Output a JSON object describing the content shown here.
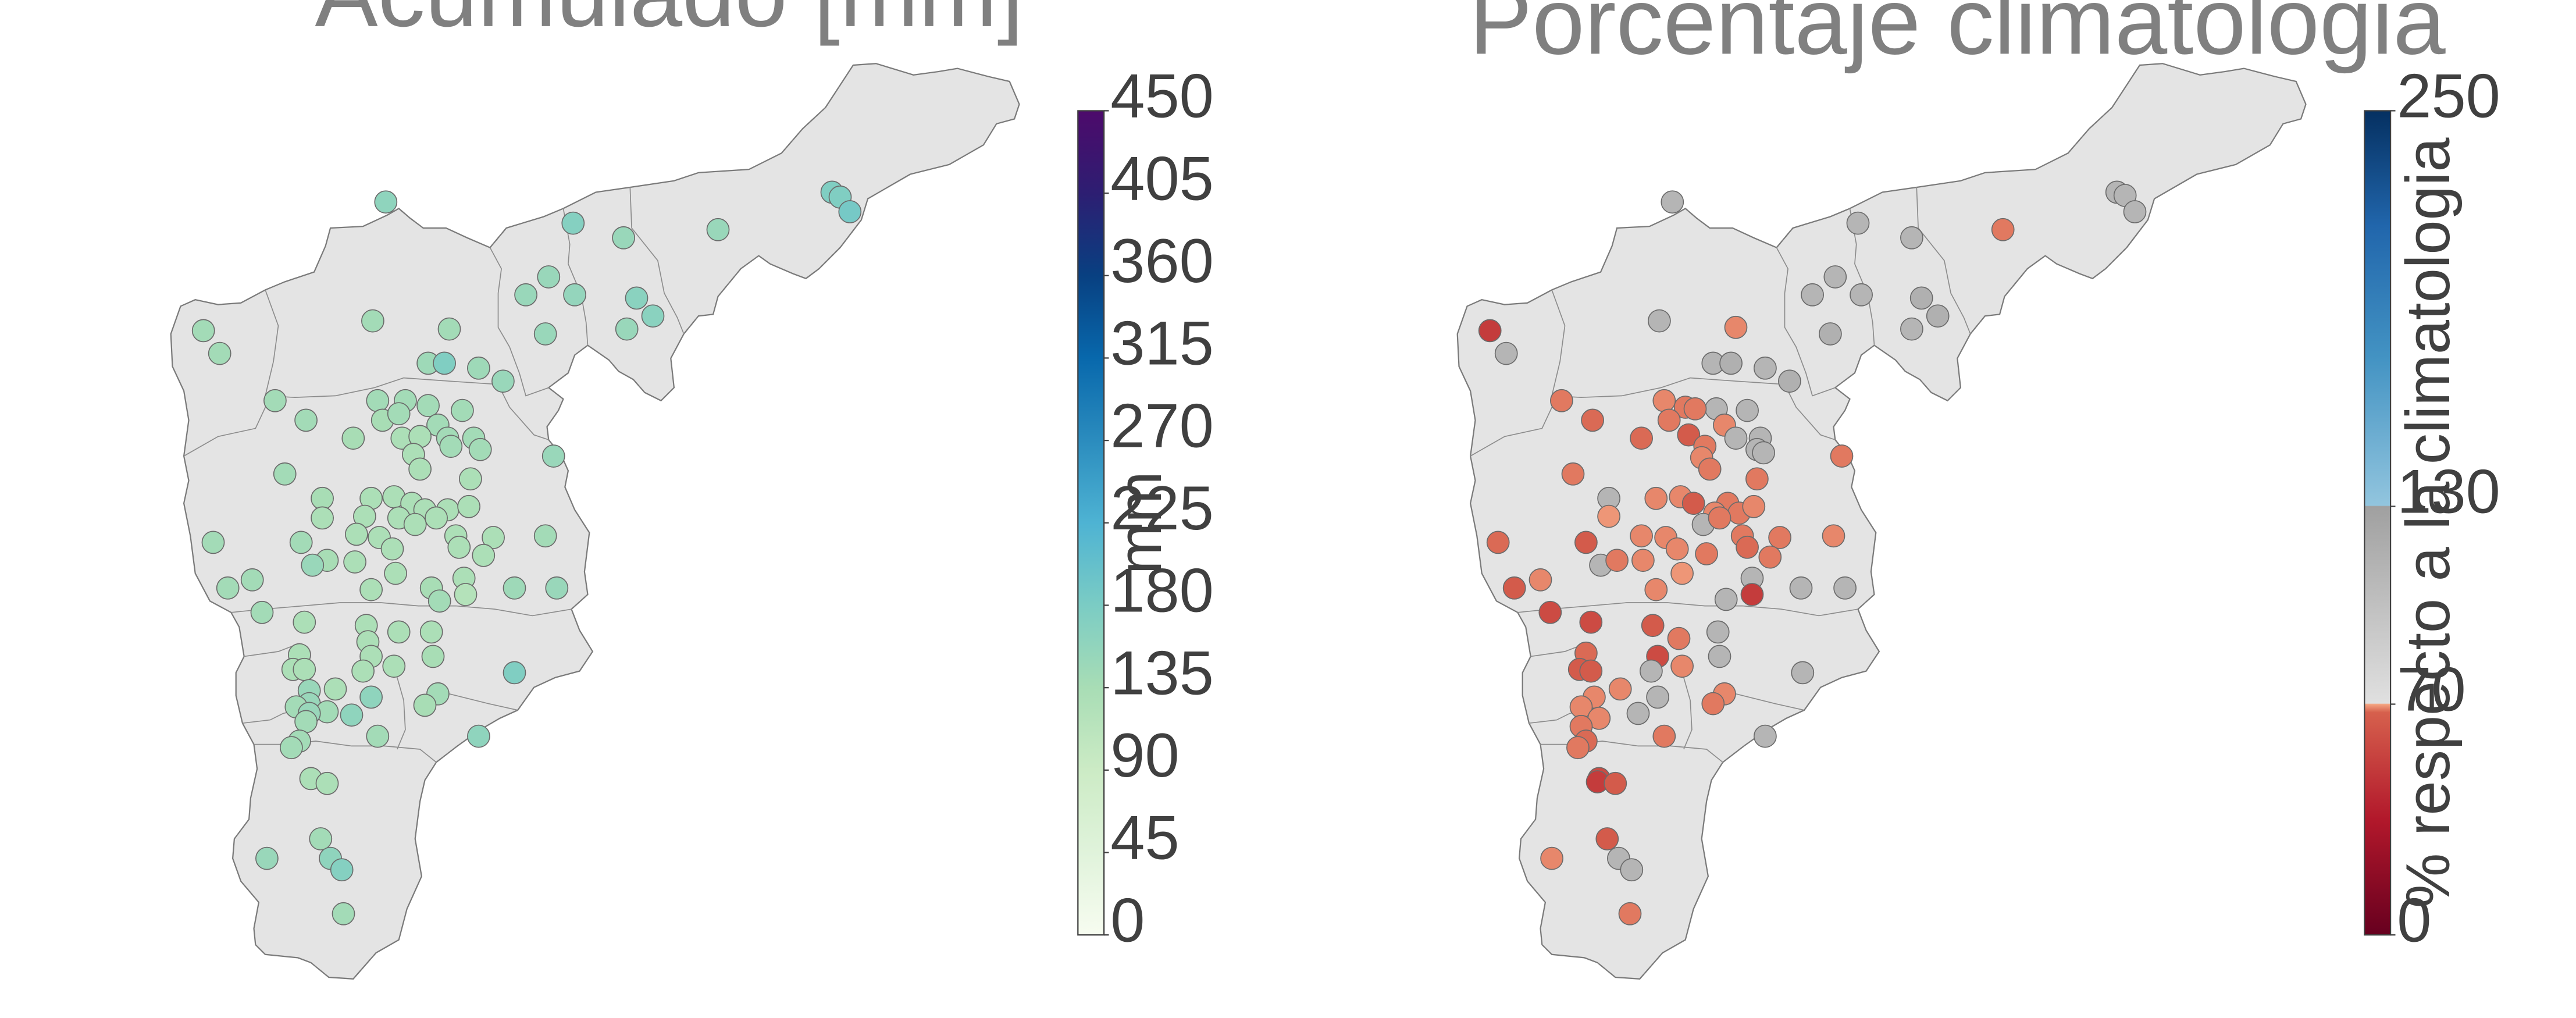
{
  "panels": [
    {
      "title": "Acumulado [mm]",
      "colorbar": {
        "label": "mm",
        "ticks": [
          "0",
          "45",
          "90",
          "135",
          "180",
          "225",
          "270",
          "315",
          "360",
          "405",
          "450"
        ],
        "colors": [
          "#f7fcf0",
          "#e0f3db",
          "#ccebc5",
          "#a8ddb5",
          "#7bccc4",
          "#4eb3d3",
          "#2b8cbe",
          "#0868ac",
          "#084081",
          "#2d1e72",
          "#4d0a6b"
        ]
      },
      "stations": [
        [
          221,
          124,
          160
        ],
        [
          109,
          203,
          140
        ],
        [
          119,
          217,
          140
        ],
        [
          213,
          197,
          140
        ],
        [
          260,
          202,
          140
        ],
        [
          247,
          223,
          145
        ],
        [
          257,
          223,
          175
        ],
        [
          278,
          226,
          145
        ],
        [
          293,
          234,
          150
        ],
        [
          153,
          246,
          140
        ],
        [
          216,
          246,
          140
        ],
        [
          233,
          246,
          140
        ],
        [
          247,
          249,
          140
        ],
        [
          268,
          252,
          140
        ],
        [
          172,
          258,
          140
        ],
        [
          219,
          258,
          135
        ],
        [
          229,
          254,
          140
        ],
        [
          253,
          261,
          140
        ],
        [
          201,
          269,
          135
        ],
        [
          231,
          269,
          130
        ],
        [
          242,
          268,
          130
        ],
        [
          259,
          269,
          140
        ],
        [
          275,
          269,
          140
        ],
        [
          279,
          276,
          140
        ],
        [
          261,
          274,
          140
        ],
        [
          238,
          279,
          130
        ],
        [
          324,
          280,
          150
        ],
        [
          242,
          288,
          130
        ],
        [
          159,
          291,
          140
        ],
        [
          273,
          294,
          130
        ],
        [
          182,
          306,
          135
        ],
        [
          212,
          306,
          130
        ],
        [
          226,
          305,
          130
        ],
        [
          237,
          309,
          130
        ],
        [
          245,
          313,
          130
        ],
        [
          259,
          313,
          130
        ],
        [
          272,
          311,
          130
        ],
        [
          208,
          317,
          130
        ],
        [
          182,
          318,
          130
        ],
        [
          229,
          318,
          130
        ],
        [
          239,
          322,
          130
        ],
        [
          252,
          318,
          130
        ],
        [
          115,
          333,
          140
        ],
        [
          169,
          333,
          140
        ],
        [
          203,
          328,
          130
        ],
        [
          217,
          330,
          130
        ],
        [
          264,
          329,
          130
        ],
        [
          287,
          330,
          130
        ],
        [
          319,
          329,
          140
        ],
        [
          266,
          336,
          130
        ],
        [
          225,
          337,
          130
        ],
        [
          185,
          344,
          135
        ],
        [
          176,
          347,
          150
        ],
        [
          202,
          345,
          130
        ],
        [
          281,
          341,
          130
        ],
        [
          139,
          356,
          140
        ],
        [
          124,
          361,
          140
        ],
        [
          227,
          352,
          130
        ],
        [
          269,
          355,
          130
        ],
        [
          300,
          361,
          145
        ],
        [
          326,
          361,
          150
        ],
        [
          212,
          362,
          130
        ],
        [
          249,
          361,
          135
        ],
        [
          254,
          369,
          140
        ],
        [
          270,
          365,
          120
        ],
        [
          145,
          376,
          140
        ],
        [
          171,
          382,
          130
        ],
        [
          209,
          384,
          130
        ],
        [
          229,
          388,
          130
        ],
        [
          249,
          388,
          130
        ],
        [
          210,
          394,
          130
        ],
        [
          168,
          402,
          130
        ],
        [
          212,
          403,
          130
        ],
        [
          226,
          409,
          130
        ],
        [
          250,
          403,
          135
        ],
        [
          164,
          411,
          130
        ],
        [
          171,
          411,
          130
        ],
        [
          207,
          412,
          130
        ],
        [
          300,
          413,
          175
        ],
        [
          190,
          423,
          130
        ],
        [
          174,
          424,
          150
        ],
        [
          212,
          428,
          160
        ],
        [
          253,
          426,
          140
        ],
        [
          174,
          432,
          150
        ],
        [
          166,
          434,
          140
        ],
        [
          185,
          437,
          140
        ],
        [
          174,
          438,
          150
        ],
        [
          245,
          433,
          135
        ],
        [
          200,
          439,
          160
        ],
        [
          172,
          443,
          140
        ],
        [
          216,
          452,
          140
        ],
        [
          168,
          455,
          140
        ],
        [
          278,
          452,
          160
        ],
        [
          163,
          459,
          140
        ],
        [
          175,
          478,
          130
        ],
        [
          185,
          481,
          130
        ],
        [
          181,
          515,
          140
        ],
        [
          148,
          527,
          150
        ],
        [
          187,
          527,
          160
        ],
        [
          194,
          534,
          170
        ],
        [
          195,
          561,
          140
        ],
        [
          367,
          146,
          150
        ],
        [
          425,
          141,
          150
        ],
        [
          336,
          137,
          170
        ],
        [
          307,
          181,
          150
        ],
        [
          321,
          170,
          150
        ],
        [
          337,
          181,
          155
        ],
        [
          319,
          205,
          150
        ],
        [
          375,
          183,
          165
        ],
        [
          369,
          202,
          150
        ],
        [
          385,
          194,
          165
        ],
        [
          495,
          118,
          175
        ],
        [
          500,
          121,
          175
        ],
        [
          506,
          130,
          185
        ]
      ]
    },
    {
      "title": "Porcentaje climatologia",
      "colorbar": {
        "label": "% respecto a la climatologia",
        "ticks": [
          "0",
          "70",
          "130",
          "250"
        ],
        "colors": [
          "#67001f",
          "#b2182b",
          "#d6604d",
          "#f4a582",
          "#d9d9d9",
          "#a0a0a0",
          "#92c5de",
          "#4393c3",
          "#2166ac",
          "#053061"
        ]
      },
      "stations": [
        [
          1011,
          124,
          110
        ],
        [
          1125,
          137,
          110
        ],
        [
          1214,
          141,
          55
        ],
        [
          1158,
          146,
          110
        ],
        [
          1284,
          118,
          110
        ],
        [
          1289,
          120,
          110
        ],
        [
          1295,
          130,
          110
        ],
        [
          1097,
          181,
          110
        ],
        [
          1111,
          170,
          110
        ],
        [
          1127,
          181,
          110
        ],
        [
          1108,
          205,
          115
        ],
        [
          1164,
          183,
          115
        ],
        [
          1158,
          202,
          110
        ],
        [
          1174,
          194,
          115
        ],
        [
          899,
          203,
          35
        ],
        [
          909,
          217,
          110
        ],
        [
          1003,
          197,
          110
        ],
        [
          1050,
          201,
          60
        ],
        [
          1036,
          223,
          110
        ],
        [
          1047,
          223,
          115
        ],
        [
          1068,
          226,
          110
        ],
        [
          1083,
          234,
          115
        ],
        [
          943,
          246,
          55
        ],
        [
          1006,
          246,
          60
        ],
        [
          1019,
          250,
          55
        ],
        [
          1038,
          251,
          110
        ],
        [
          1057,
          252,
          110
        ],
        [
          1025,
          251,
          55
        ],
        [
          962,
          258,
          50
        ],
        [
          1009,
          258,
          55
        ],
        [
          1043,
          261,
          60
        ],
        [
          992,
          269,
          50
        ],
        [
          1050,
          269,
          110
        ],
        [
          1021,
          267,
          45
        ],
        [
          1031,
          274,
          55
        ],
        [
          1065,
          269,
          110
        ],
        [
          1063,
          276,
          110
        ],
        [
          1067,
          278,
          110
        ],
        [
          1115,
          280,
          55
        ],
        [
          1029,
          281,
          60
        ],
        [
          1034,
          288,
          55
        ],
        [
          950,
          291,
          55
        ],
        [
          1063,
          294,
          55
        ],
        [
          972,
          306,
          110
        ],
        [
          1001,
          306,
          60
        ],
        [
          1016,
          305,
          60
        ],
        [
          1024,
          309,
          45
        ],
        [
          1045,
          309,
          55
        ],
        [
          1037,
          315,
          60
        ],
        [
          1052,
          315,
          55
        ],
        [
          1061,
          311,
          60
        ],
        [
          972,
          317,
          65
        ],
        [
          1030,
          322,
          110
        ],
        [
          1040,
          318,
          55
        ],
        [
          904,
          333,
          50
        ],
        [
          958,
          333,
          45
        ],
        [
          992,
          329,
          60
        ],
        [
          1007,
          330,
          60
        ],
        [
          1054,
          329,
          55
        ],
        [
          1077,
          330,
          55
        ],
        [
          1110,
          329,
          60
        ],
        [
          967,
          347,
          110
        ],
        [
          977,
          344,
          55
        ],
        [
          993,
          344,
          60
        ],
        [
          1014,
          337,
          60
        ],
        [
          1032,
          340,
          55
        ],
        [
          1057,
          336,
          50
        ],
        [
          1071,
          342,
          55
        ],
        [
          930,
          356,
          60
        ],
        [
          914,
          361,
          45
        ],
        [
          1017,
          352,
          65
        ],
        [
          1060,
          355,
          110
        ],
        [
          1044,
          368,
          110
        ],
        [
          1060,
          365,
          35
        ],
        [
          1090,
          361,
          110
        ],
        [
          1117,
          361,
          110
        ],
        [
          1001,
          362,
          60
        ],
        [
          936,
          376,
          40
        ],
        [
          961,
          382,
          40
        ],
        [
          999,
          384,
          45
        ],
        [
          1015,
          392,
          55
        ],
        [
          1039,
          388,
          110
        ],
        [
          958,
          401,
          50
        ],
        [
          1002,
          403,
          40
        ],
        [
          1017,
          409,
          60
        ],
        [
          1040,
          403,
          110
        ],
        [
          954,
          411,
          45
        ],
        [
          961,
          412,
          45
        ],
        [
          998,
          412,
          110
        ],
        [
          1091,
          413,
          110
        ],
        [
          979,
          423,
          60
        ],
        [
          1043,
          426,
          60
        ],
        [
          963,
          428,
          60
        ],
        [
          955,
          434,
          60
        ],
        [
          1002,
          428,
          110
        ],
        [
          1036,
          432,
          55
        ],
        [
          990,
          438,
          110
        ],
        [
          966,
          441,
          60
        ],
        [
          955,
          446,
          55
        ],
        [
          1006,
          452,
          55
        ],
        [
          958,
          455,
          50
        ],
        [
          1068,
          452,
          110
        ],
        [
          953,
          459,
          55
        ],
        [
          966,
          478,
          40
        ],
        [
          965,
          480,
          35
        ],
        [
          976,
          481,
          45
        ],
        [
          971,
          515,
          45
        ],
        [
          937,
          527,
          60
        ],
        [
          978,
          527,
          110
        ],
        [
          986,
          534,
          110
        ],
        [
          985,
          561,
          55
        ]
      ]
    }
  ]
}
